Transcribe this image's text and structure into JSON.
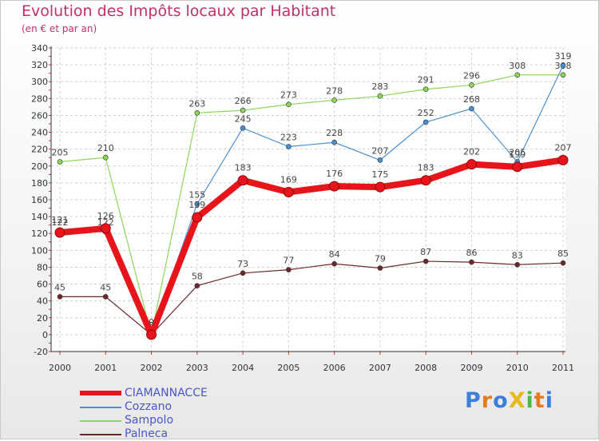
{
  "title": "Evolution des Impôts locaux par Habitant",
  "subtitle": "(en € et par an)",
  "logo": {
    "text": "ProXiti",
    "colors": [
      "#3d7fd6",
      "#e87a1e",
      "#3d7fd6",
      "#e8b81e",
      "#4bb84b",
      "#e87a1e",
      "#3d7fd6"
    ]
  },
  "chart_data": {
    "type": "line",
    "title": "Evolution des Impôts locaux par Habitant",
    "subtitle": "(en € et par an)",
    "x": [
      "2000",
      "2001",
      "2002",
      "2003",
      "2004",
      "2005",
      "2006",
      "2007",
      "2008",
      "2009",
      "2010",
      "2011"
    ],
    "ylim": [
      -20,
      340
    ],
    "yticks": [
      -20,
      0,
      20,
      40,
      60,
      80,
      100,
      120,
      140,
      160,
      180,
      200,
      220,
      240,
      260,
      280,
      300,
      320,
      340
    ],
    "grid": true,
    "legend_position": "bottom-left",
    "series": [
      {
        "name": "Palneca",
        "color": "#6b2a2a",
        "values": [
          45,
          45,
          0,
          58,
          73,
          77,
          84,
          79,
          87,
          86,
          83,
          85
        ]
      },
      {
        "name": "Sampolo",
        "color": "#8ed65a",
        "values": [
          205,
          210,
          0,
          263,
          266,
          273,
          278,
          283,
          291,
          296,
          308,
          308
        ]
      },
      {
        "name": "Cozzano",
        "color": "#4a90d0",
        "values": [
          122,
          122,
          0,
          155,
          245,
          223,
          228,
          207,
          252,
          268,
          205,
          319
        ]
      },
      {
        "name": "CIAMANNACCE",
        "color": "#e8141b",
        "values": [
          121,
          126,
          0,
          139,
          183,
          169,
          176,
          175,
          183,
          202,
          199,
          207
        ]
      }
    ]
  }
}
